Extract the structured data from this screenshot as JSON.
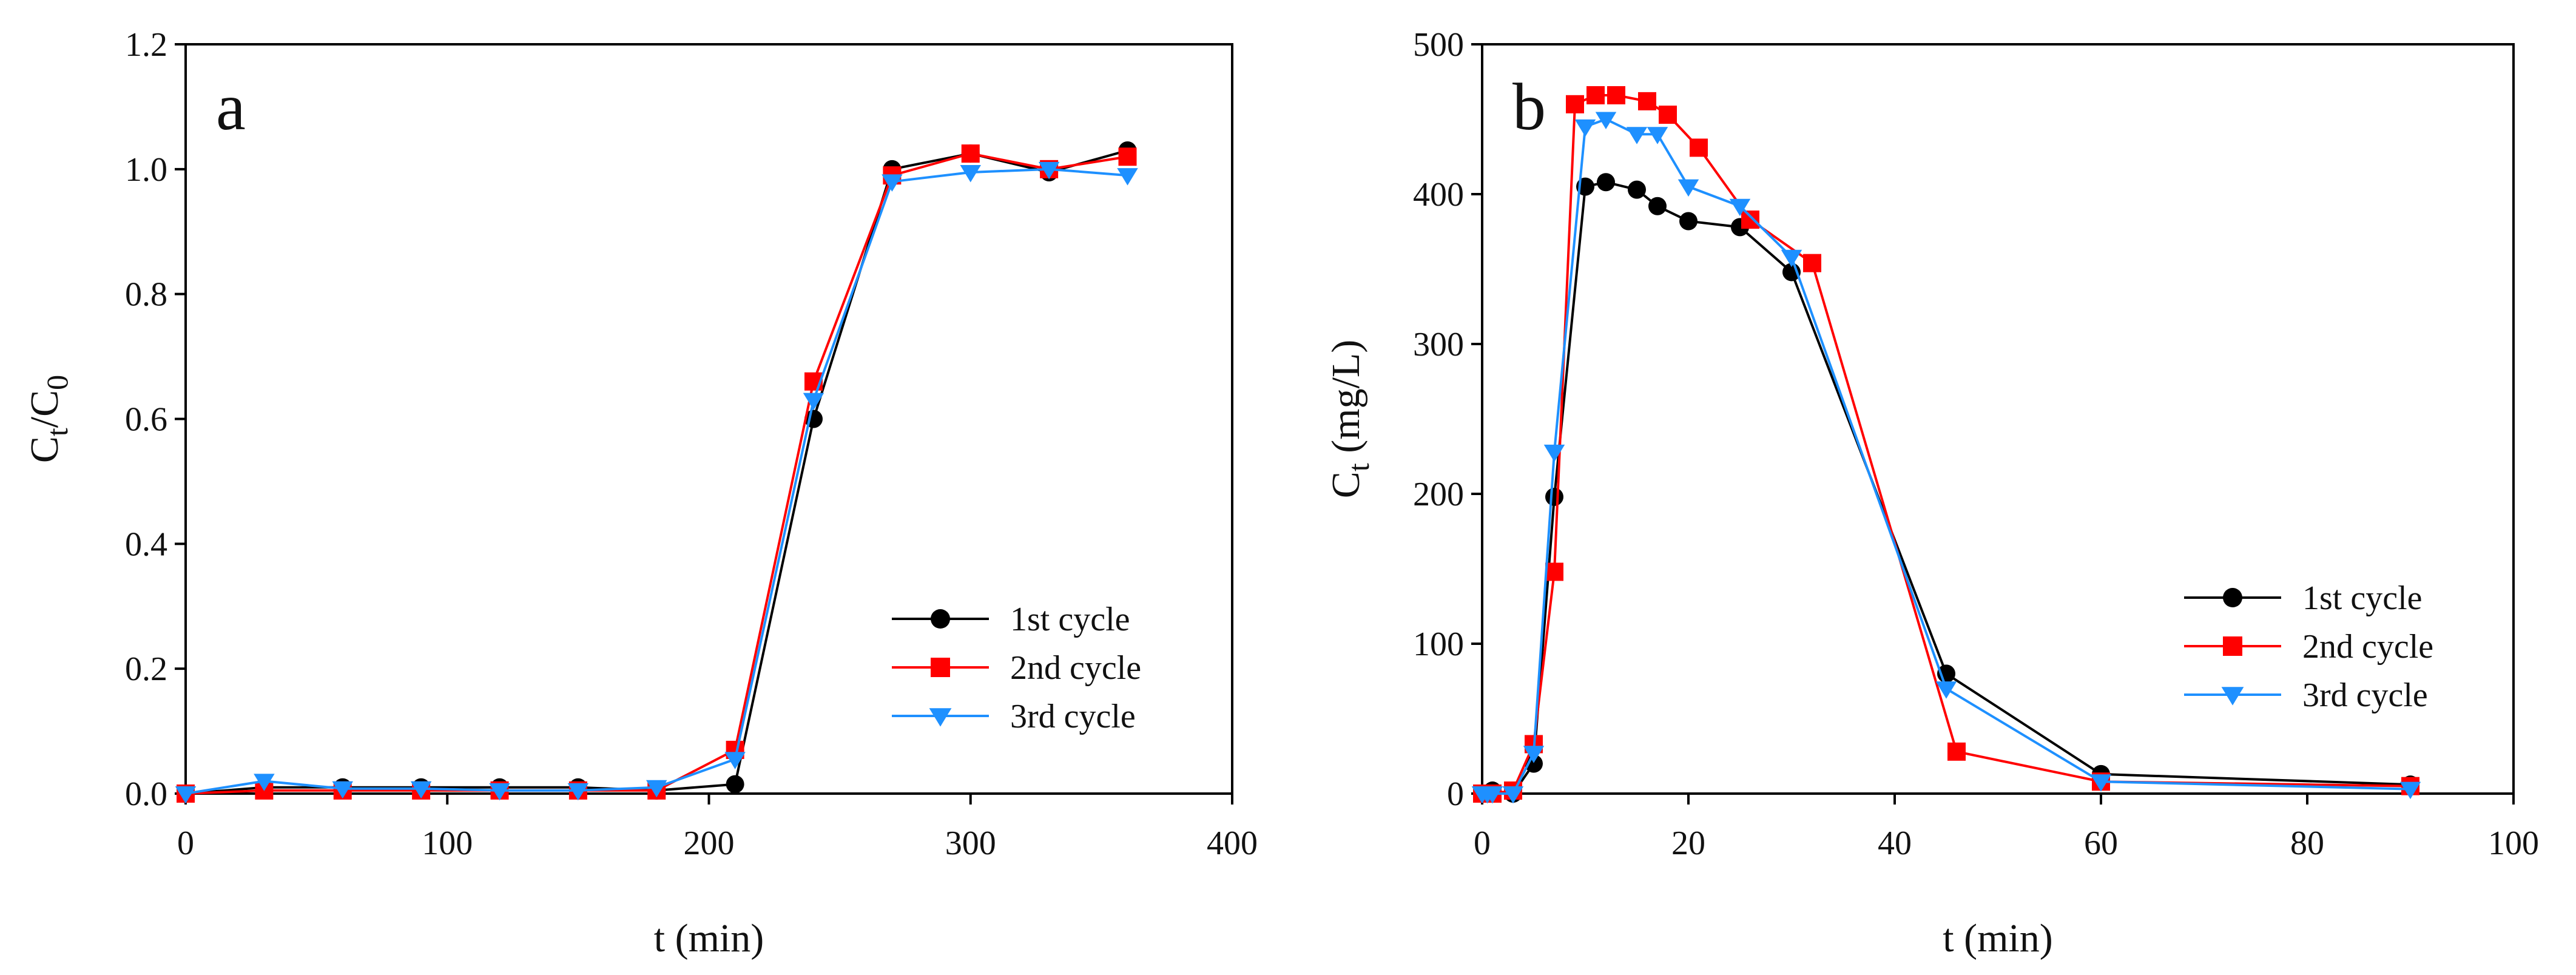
{
  "chart_data": [
    {
      "type": "line",
      "panel_label": "a",
      "xlabel": "t (min)",
      "ylabel": {
        "main": "C",
        "sub1": "t",
        "mid": "/C",
        "sub2": "0"
      },
      "xlim": [
        0,
        400
      ],
      "ylim": [
        0,
        1.2
      ],
      "xticks": [
        0,
        100,
        200,
        300,
        400
      ],
      "yticks": [
        "0.0",
        "0.2",
        "0.4",
        "0.6",
        "0.8",
        "1.0",
        "1.2"
      ],
      "grid": false,
      "legend_position": "lower-right",
      "series": [
        {
          "name": "1st cycle",
          "color": "#000000",
          "marker": "circle",
          "x": [
            0,
            30,
            60,
            90,
            120,
            150,
            180,
            210,
            240,
            270,
            300,
            330,
            360
          ],
          "y": [
            0,
            0.01,
            0.01,
            0.01,
            0.01,
            0.01,
            0.005,
            0.015,
            0.6,
            1.0,
            1.025,
            0.995,
            1.03
          ]
        },
        {
          "name": "2nd cycle",
          "color": "#ff0000",
          "marker": "square",
          "x": [
            0,
            30,
            60,
            90,
            120,
            150,
            180,
            210,
            240,
            270,
            300,
            330,
            360
          ],
          "y": [
            0,
            0.005,
            0.005,
            0.005,
            0.005,
            0.005,
            0.005,
            0.07,
            0.66,
            0.99,
            1.025,
            1.0,
            1.02
          ]
        },
        {
          "name": "3rd cycle",
          "color": "#1e90ff",
          "marker": "triangle-down",
          "x": [
            0,
            30,
            60,
            90,
            120,
            150,
            180,
            210,
            240,
            270,
            300,
            330,
            360
          ],
          "y": [
            0,
            0.02,
            0.008,
            0.008,
            0.005,
            0.005,
            0.01,
            0.055,
            0.63,
            0.98,
            0.995,
            1.0,
            0.99
          ]
        }
      ]
    },
    {
      "type": "line",
      "panel_label": "b",
      "xlabel": "t (min)",
      "ylabel": {
        "main": "C",
        "sub1": "t",
        "mid": " (mg/L)",
        "sub2": ""
      },
      "xlim": [
        0,
        100
      ],
      "ylim": [
        0,
        500
      ],
      "xticks": [
        0,
        20,
        40,
        60,
        80,
        100
      ],
      "yticks": [
        "0",
        "100",
        "200",
        "300",
        "400",
        "500"
      ],
      "grid": false,
      "legend_position": "lower-right",
      "series": [
        {
          "name": "1st cycle",
          "color": "#000000",
          "marker": "circle",
          "x": [
            0,
            0.5,
            1,
            3,
            5,
            7,
            10,
            12,
            15,
            17,
            20,
            25,
            30,
            45,
            60,
            90
          ],
          "y": [
            0,
            0,
            2,
            0,
            20,
            198,
            405,
            408,
            403,
            392,
            382,
            378,
            348,
            80,
            13,
            6
          ]
        },
        {
          "name": "2nd cycle",
          "color": "#ff0000",
          "marker": "square",
          "x": [
            0,
            0.5,
            1,
            3,
            5,
            7,
            9,
            11,
            13,
            16,
            18,
            21,
            26,
            32,
            46,
            60,
            90
          ],
          "y": [
            0,
            0,
            0,
            2,
            33,
            148,
            460,
            466,
            466,
            462,
            453,
            431,
            383,
            354,
            28,
            8,
            5
          ]
        },
        {
          "name": "3rd cycle",
          "color": "#1e90ff",
          "marker": "triangle-down",
          "x": [
            0,
            0.5,
            1,
            3,
            5,
            7,
            10,
            12,
            15,
            17,
            20,
            25,
            30,
            45,
            60,
            90
          ],
          "y": [
            0,
            0,
            0,
            0,
            27,
            228,
            445,
            450,
            440,
            440,
            405,
            392,
            358,
            70,
            8,
            3
          ]
        }
      ]
    }
  ]
}
